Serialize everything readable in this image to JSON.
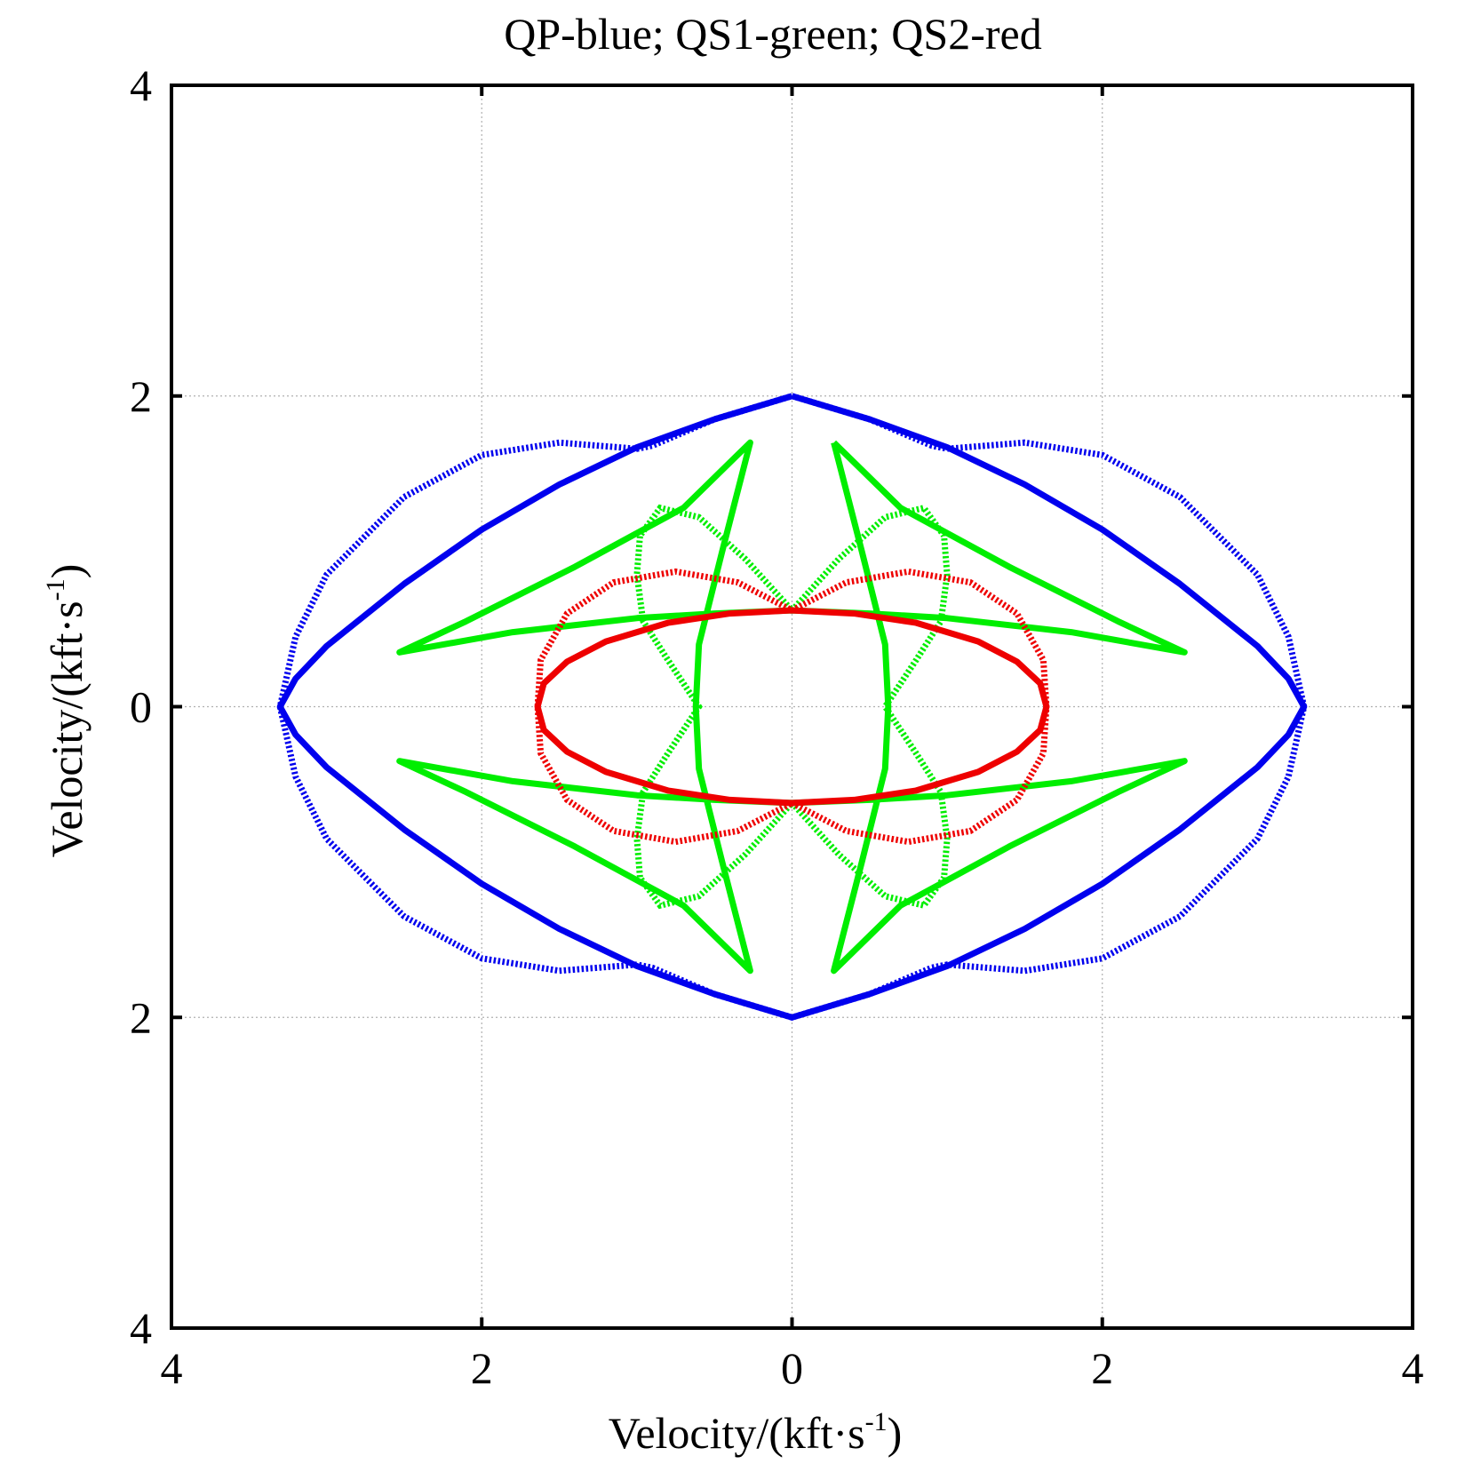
{
  "chart_data": {
    "type": "line",
    "title": "QP-blue; QS1-green; QS2-red",
    "xlabel": {
      "text": "Velocity/(kft·s",
      "sup": "-1",
      "close": ")"
    },
    "ylabel": {
      "text": "Velocity/(kft·s",
      "sup": "-1",
      "close": ")"
    },
    "xlim": [
      -4,
      4
    ],
    "ylim": [
      -4,
      4
    ],
    "x_ticks": [
      -4,
      -2,
      0,
      2,
      4
    ],
    "y_ticks": [
      -4,
      -2,
      0,
      2,
      4
    ],
    "x_tick_labels": [
      "4",
      "2",
      "0",
      "2",
      "4"
    ],
    "y_tick_labels": [
      "4",
      "2",
      "0",
      "2",
      "4"
    ],
    "grid": true,
    "colors": {
      "blue": "#0000ee",
      "green": "#00ee00",
      "red": "#ee0000"
    },
    "series": [
      {
        "style": "solid",
        "color": "blue",
        "x": [
          0,
          0.5,
          1.0,
          1.5,
          2.0,
          2.5,
          3.0,
          3.2,
          3.3,
          3.2,
          3.0,
          2.5,
          2.0,
          1.5,
          1.0,
          0.5,
          0,
          -0.5,
          -1.0,
          -1.5,
          -2.0,
          -2.5,
          -3.0,
          -3.2,
          -3.3,
          -3.2,
          -3.0,
          -2.5,
          -2.0,
          -1.5,
          -1.0,
          -0.5,
          0
        ],
        "y": [
          2.0,
          1.85,
          1.67,
          1.43,
          1.14,
          0.79,
          0.39,
          0.18,
          0,
          -0.18,
          -0.39,
          -0.79,
          -1.14,
          -1.43,
          -1.67,
          -1.85,
          -2.0,
          -1.85,
          -1.67,
          -1.43,
          -1.14,
          -0.79,
          -0.39,
          -0.18,
          0,
          0.18,
          0.39,
          0.79,
          1.14,
          1.43,
          1.67,
          1.85,
          2.0
        ]
      },
      {
        "style": "dotted",
        "color": "blue",
        "x": [
          0,
          0.5,
          0.9,
          1.0,
          1.5,
          2.0,
          2.5,
          3.0,
          3.2,
          3.3,
          3.2,
          3.0,
          2.5,
          2.0,
          1.5,
          1.0,
          0.9,
          0.5,
          0,
          -0.5,
          -0.9,
          -1.0,
          -1.5,
          -2.0,
          -2.5,
          -3.0,
          -3.2,
          -3.3,
          -3.2,
          -3.0,
          -2.5,
          -2.0,
          -1.5,
          -1.0,
          -0.9,
          -0.5,
          0
        ],
        "y": [
          2.0,
          1.85,
          1.68,
          1.66,
          1.7,
          1.62,
          1.35,
          0.85,
          0.45,
          0,
          -0.45,
          -0.85,
          -1.35,
          -1.62,
          -1.7,
          -1.66,
          -1.68,
          -1.85,
          -2.0,
          -1.85,
          -1.68,
          -1.66,
          -1.7,
          -1.62,
          -1.35,
          -0.85,
          -0.45,
          0,
          0.45,
          0.85,
          1.35,
          1.62,
          1.7,
          1.66,
          1.68,
          1.85,
          2.0
        ]
      },
      {
        "style": "solid",
        "color": "red",
        "x": [
          0,
          0.4,
          0.8,
          1.2,
          1.45,
          1.6,
          1.64,
          1.6,
          1.45,
          1.2,
          0.8,
          0.4,
          0,
          -0.4,
          -0.8,
          -1.2,
          -1.45,
          -1.6,
          -1.64,
          -1.6,
          -1.45,
          -1.2,
          -0.8,
          -0.4,
          0
        ],
        "y": [
          0.62,
          0.6,
          0.54,
          0.42,
          0.29,
          0.15,
          0,
          -0.15,
          -0.29,
          -0.42,
          -0.54,
          -0.6,
          -0.62,
          -0.6,
          -0.54,
          -0.42,
          -0.29,
          -0.15,
          0,
          0.15,
          0.29,
          0.42,
          0.54,
          0.6,
          0.62
        ]
      },
      {
        "style": "dotted",
        "color": "red",
        "x": [
          0,
          0.35,
          0.75,
          1.15,
          1.45,
          1.62,
          1.64,
          1.62,
          1.45,
          1.15,
          0.75,
          0.35,
          0,
          -0.35,
          -0.75,
          -1.15,
          -1.45,
          -1.62,
          -1.64,
          -1.62,
          -1.45,
          -1.15,
          -0.75,
          -0.35,
          0
        ],
        "y": [
          0.62,
          0.8,
          0.87,
          0.8,
          0.6,
          0.3,
          0,
          -0.3,
          -0.6,
          -0.8,
          -0.87,
          -0.8,
          -0.62,
          -0.8,
          -0.87,
          -0.8,
          -0.6,
          -0.3,
          0,
          0.3,
          0.6,
          0.8,
          0.87,
          0.8,
          0.62
        ]
      },
      {
        "style": "solid",
        "color": "green",
        "x": [
          0.27,
          0.45,
          0.6,
          0.62,
          0.6,
          0.45,
          0.27,
          0.7,
          1.4,
          2.1,
          2.53,
          1.8,
          1.0,
          0.5,
          0,
          -0.5,
          -1.0,
          -1.8,
          -2.53,
          -2.1,
          -1.4,
          -0.7,
          -0.27,
          -0.45,
          -0.6,
          -0.62,
          -0.6,
          -0.45,
          -0.27,
          -0.7,
          -1.4,
          -2.1,
          -2.53,
          -1.8,
          -1.0,
          -0.5,
          0,
          0.5,
          1.0,
          1.8,
          2.53,
          2.1,
          1.4,
          0.7,
          0.27
        ],
        "y": [
          1.7,
          1.0,
          0.4,
          0,
          -0.4,
          -1.0,
          -1.7,
          -1.28,
          -0.9,
          -0.55,
          -0.35,
          -0.48,
          -0.57,
          -0.6,
          -0.62,
          -0.6,
          -0.57,
          -0.48,
          -0.35,
          -0.55,
          -0.9,
          -1.28,
          -1.7,
          -1.0,
          -0.4,
          0,
          0.4,
          1.0,
          1.7,
          1.28,
          0.9,
          0.55,
          0.35,
          0.48,
          0.57,
          0.6,
          0.62,
          0.6,
          0.57,
          0.48,
          0.35,
          0.55,
          0.9,
          1.28,
          1.7
        ]
      },
      {
        "style": "dotted",
        "color": "green",
        "x": [
          0,
          0.3,
          0.6,
          0.85,
          0.98,
          1.0,
          0.96,
          0.8,
          0.6,
          0.6,
          0.8,
          0.96,
          1.0,
          0.98,
          0.85,
          0.6,
          0.3,
          0,
          -0.3,
          -0.6,
          -0.85,
          -0.98,
          -1.0,
          -0.96,
          -0.8,
          -0.6,
          -0.6,
          -0.8,
          -0.96,
          -1.0,
          -0.98,
          -0.85,
          -0.6,
          -0.3,
          0
        ],
        "y": [
          0.62,
          0.95,
          1.22,
          1.28,
          1.1,
          0.85,
          0.55,
          0.3,
          0,
          0,
          -0.3,
          -0.55,
          -0.85,
          -1.1,
          -1.28,
          -1.22,
          -0.95,
          -0.62,
          -0.95,
          -1.22,
          -1.28,
          -1.1,
          -0.85,
          -0.55,
          -0.3,
          0,
          0,
          0.3,
          0.55,
          0.85,
          1.1,
          1.28,
          1.22,
          0.95,
          0.62
        ]
      }
    ]
  }
}
